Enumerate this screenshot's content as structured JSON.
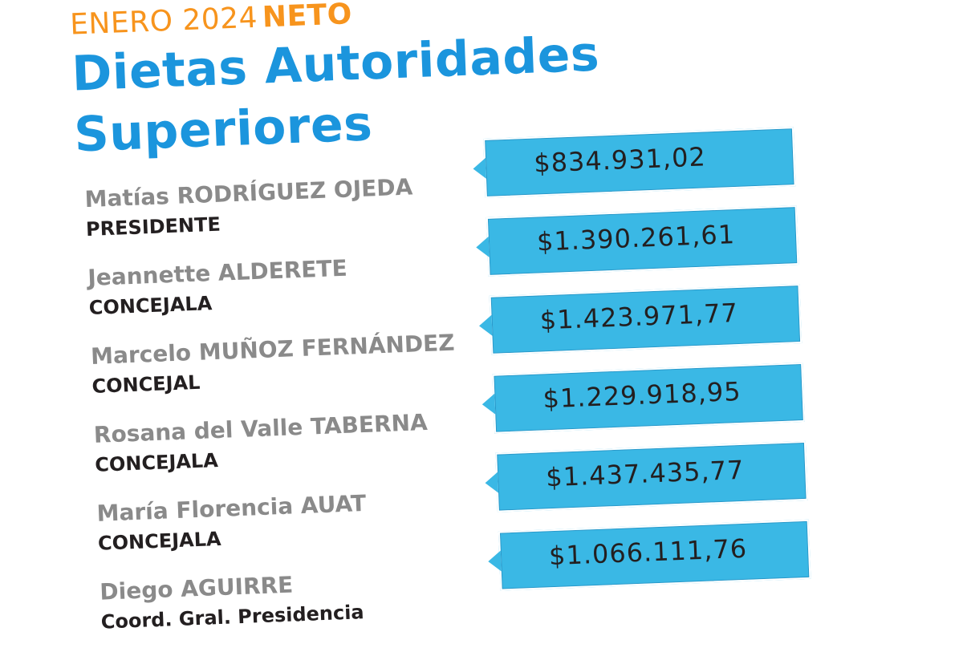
{
  "header": {
    "period": "ENERO 2024",
    "type": "NETO",
    "title_line1": "Dietas Autoridades",
    "title_line2": "Superiores"
  },
  "colors": {
    "accent_orange": "#f7941d",
    "title_blue": "#1b95dd",
    "tag_blue": "#3ab8e5",
    "name_gray": "#8a8a8a",
    "role_black": "#231f20"
  },
  "rows": [
    {
      "name": "Matías RODRÍGUEZ OJEDA",
      "role": "PRESIDENTE",
      "amount": "$834.931,02"
    },
    {
      "name": "Jeannette ALDERETE",
      "role": "CONCEJALA",
      "amount": "$1.390.261,61"
    },
    {
      "name": "Marcelo MUÑOZ FERNÁNDEZ",
      "role": "CONCEJAL",
      "amount": "$1.423.971,77"
    },
    {
      "name": "Rosana del Valle TABERNA",
      "role": "CONCEJALA",
      "amount": "$1.229.918,95"
    },
    {
      "name": "María Florencia AUAT",
      "role": "CONCEJALA",
      "amount": "$1.437.435,77"
    },
    {
      "name": "Diego AGUIRRE",
      "role": "Coord. Gral. Presidencia",
      "amount": "$1.066.111,76"
    }
  ]
}
